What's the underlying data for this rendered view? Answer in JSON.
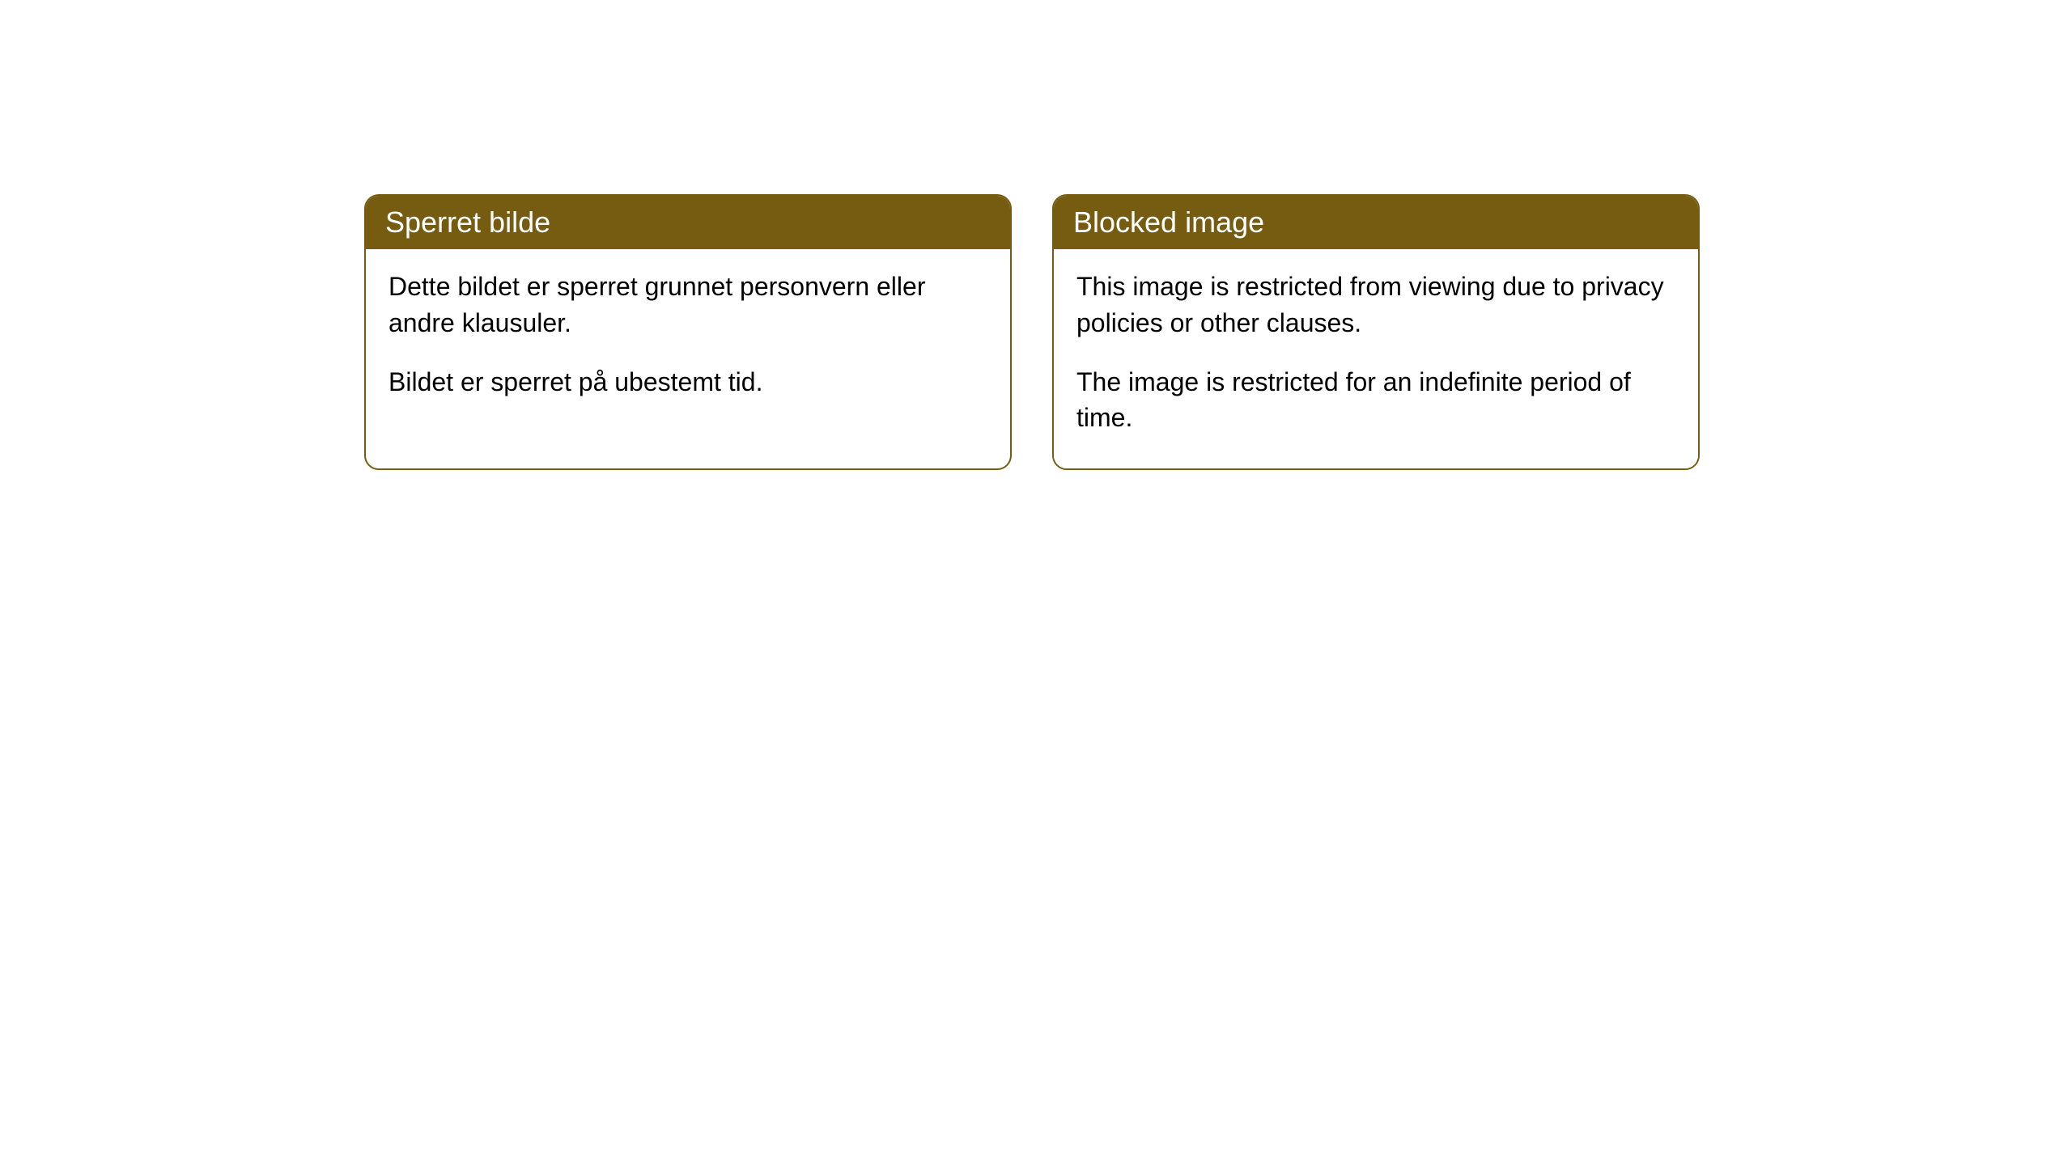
{
  "cards": [
    {
      "title": "Sperret bilde",
      "paragraph1": "Dette bildet er sperret grunnet personvern eller andre klausuler.",
      "paragraph2": "Bildet er sperret på ubestemt tid."
    },
    {
      "title": "Blocked image",
      "paragraph1": "This image is restricted from viewing due to privacy policies or other clauses.",
      "paragraph2": "The image is restricted for an indefinite period of time."
    }
  ],
  "styling": {
    "header_background": "#765c10",
    "header_text_color": "#ffffff",
    "border_color": "#765c10",
    "body_background": "#ffffff",
    "body_text_color": "#000000",
    "border_radius": 18,
    "title_fontsize": 36,
    "body_fontsize": 32
  }
}
